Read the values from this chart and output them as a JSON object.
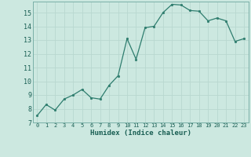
{
  "x": [
    0,
    1,
    2,
    3,
    4,
    5,
    6,
    7,
    8,
    9,
    10,
    11,
    12,
    13,
    14,
    15,
    16,
    17,
    18,
    19,
    20,
    21,
    22,
    23
  ],
  "y": [
    7.5,
    8.3,
    7.9,
    8.7,
    9.0,
    9.4,
    8.8,
    8.7,
    9.7,
    10.4,
    13.1,
    11.6,
    13.9,
    14.0,
    15.0,
    15.6,
    15.55,
    15.15,
    15.1,
    14.4,
    14.6,
    14.4,
    12.9,
    13.1
  ],
  "xlabel": "Humidex (Indice chaleur)",
  "ylim": [
    7,
    15.8
  ],
  "xlim": [
    -0.5,
    23.5
  ],
  "yticks": [
    7,
    8,
    9,
    10,
    11,
    12,
    13,
    14,
    15
  ],
  "xticks": [
    0,
    1,
    2,
    3,
    4,
    5,
    6,
    7,
    8,
    9,
    10,
    11,
    12,
    13,
    14,
    15,
    16,
    17,
    18,
    19,
    20,
    21,
    22,
    23
  ],
  "line_color": "#2e7d6e",
  "marker_color": "#2e7d6e",
  "bg_color": "#cce8e0",
  "grid_color": "#b8d8d0",
  "tick_color": "#2e7d6e",
  "label_color": "#1a5f54"
}
